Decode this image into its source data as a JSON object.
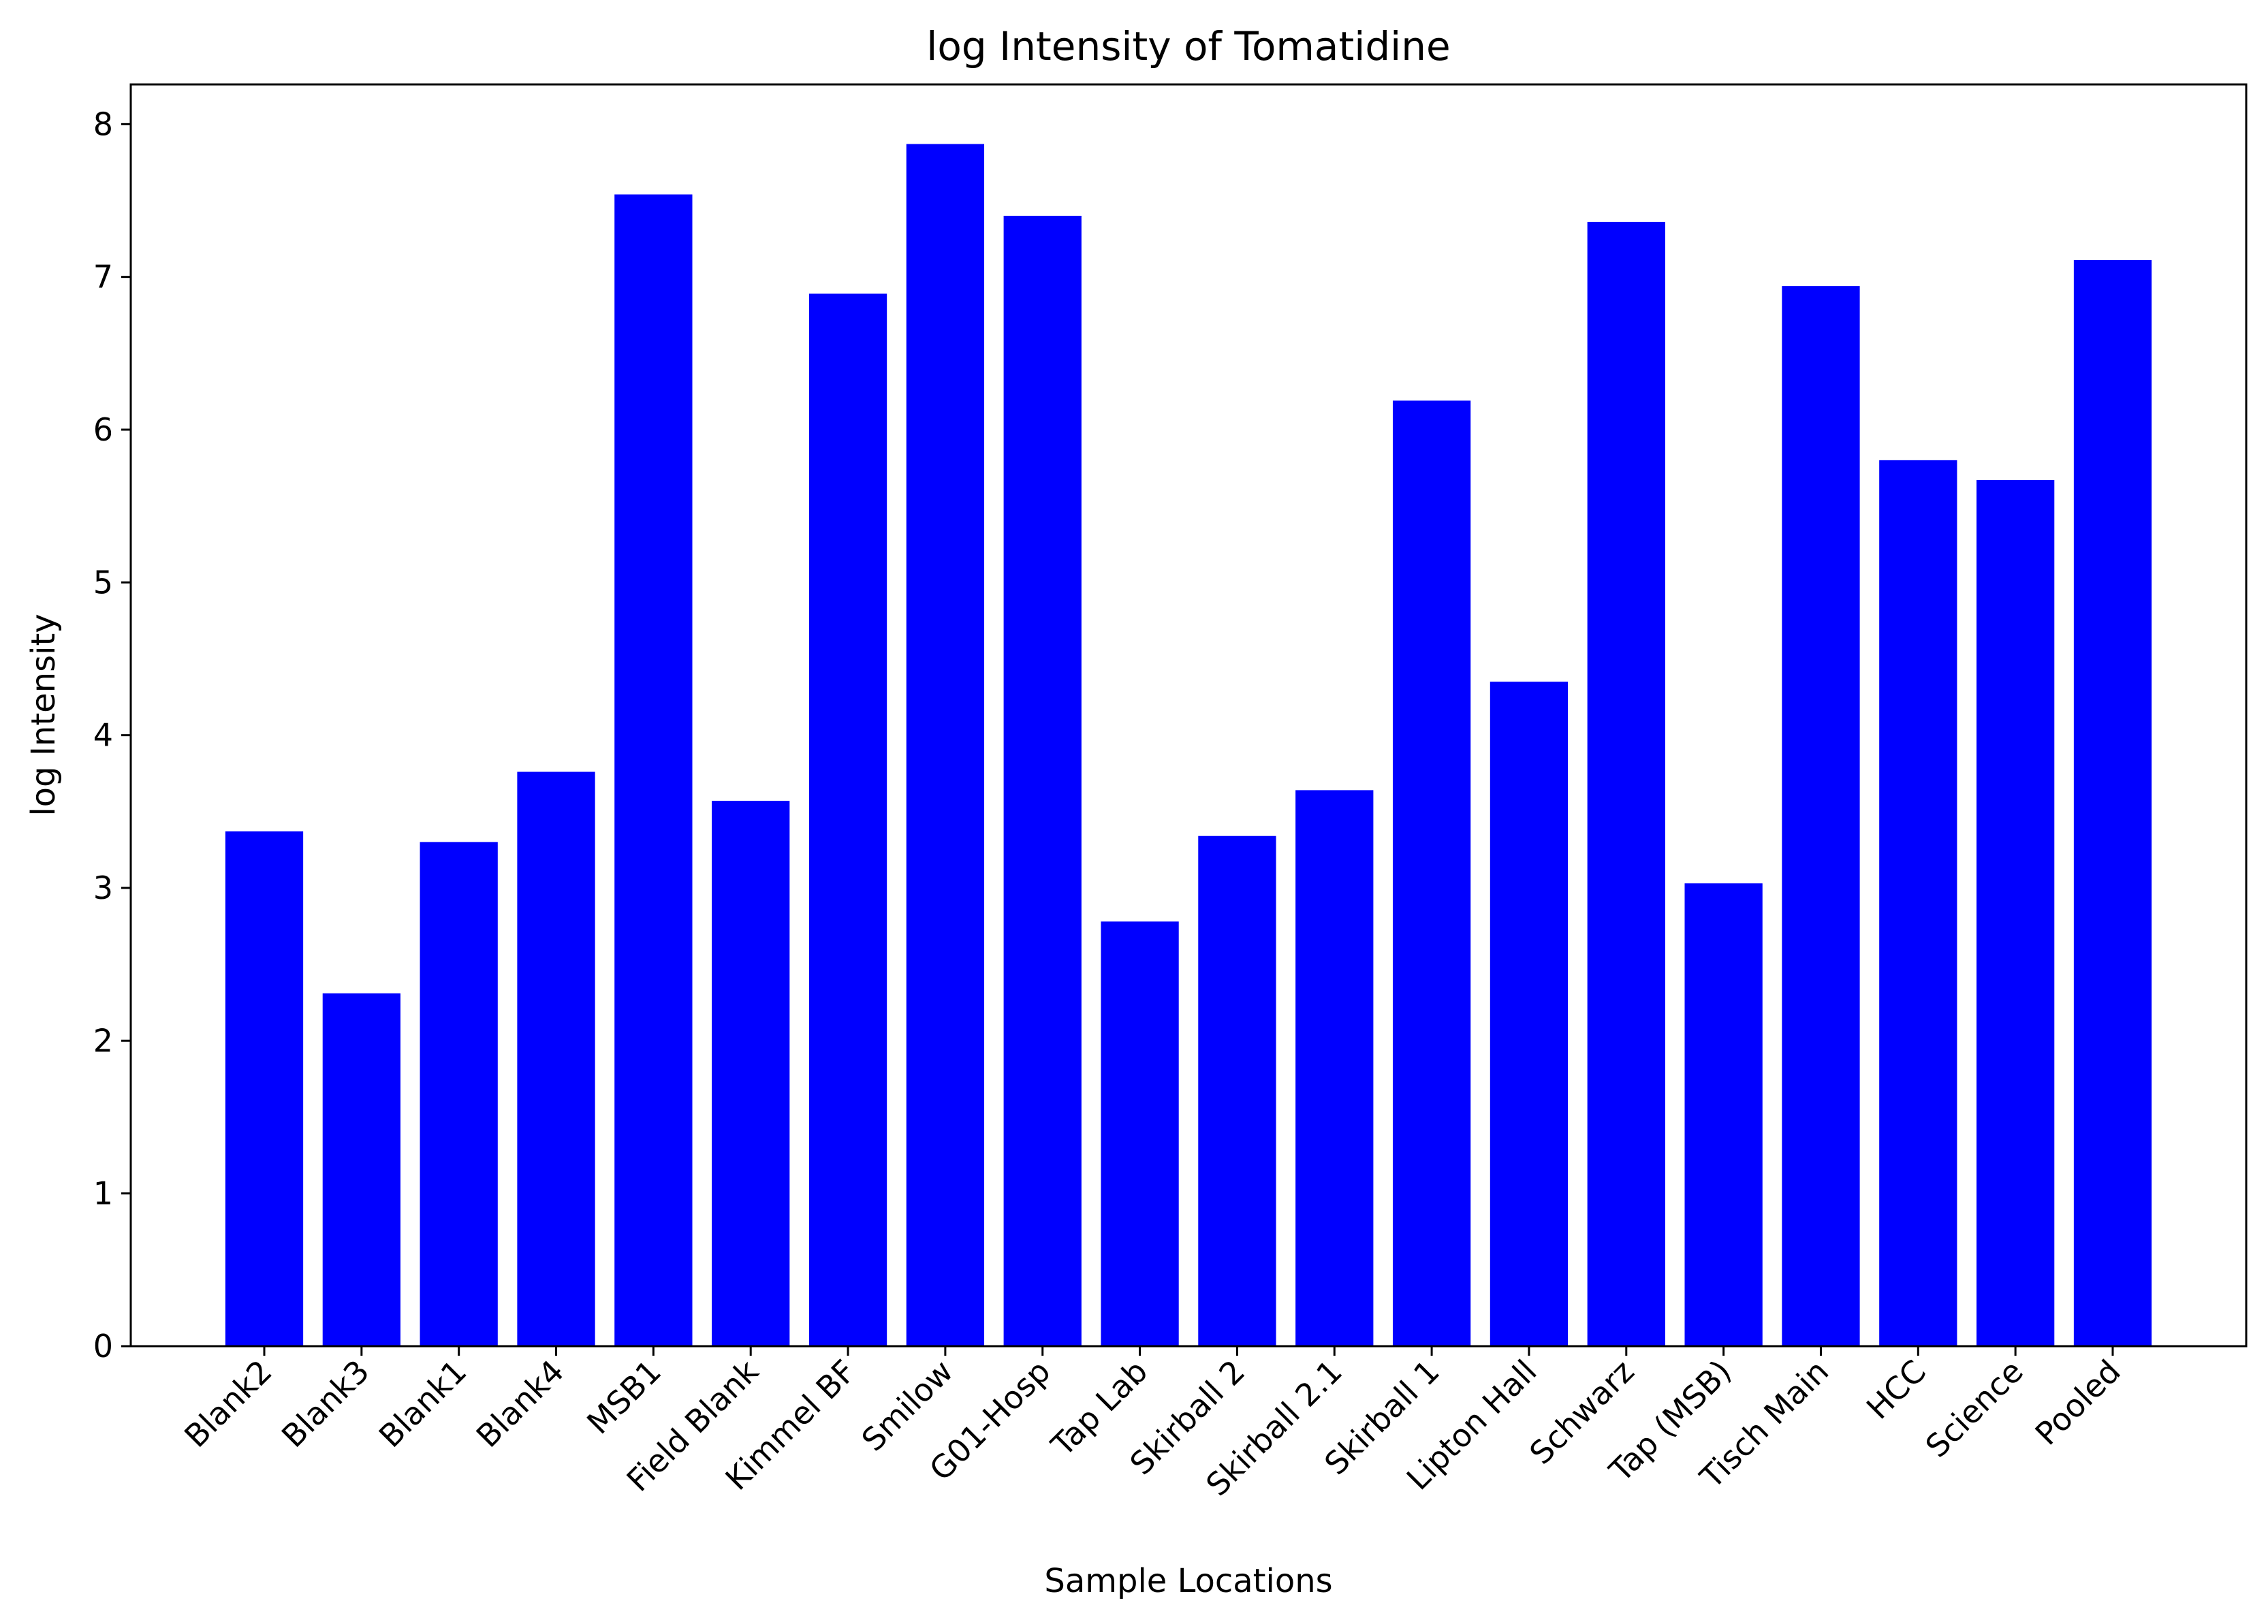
{
  "chart_data": {
    "type": "bar",
    "title": "log Intensity of Tomatidine",
    "xlabel": "Sample Locations",
    "ylabel": "log Intensity",
    "categories": [
      "Blank2",
      "Blank3",
      "Blank1",
      "Blank4",
      "MSB1",
      "Field Blank",
      "Kimmel BF",
      "Smilow",
      "G01-Hosp",
      "Tap Lab",
      "Skirball 2",
      "Skirball 2.1",
      "Skirball 1",
      "Lipton Hall",
      "Schwarz",
      "Tap (MSB)",
      "Tisch Main",
      "HCC",
      "Science",
      "Pooled"
    ],
    "values": [
      3.37,
      2.31,
      3.3,
      3.76,
      7.54,
      3.57,
      6.89,
      7.87,
      7.4,
      2.78,
      3.34,
      3.64,
      6.19,
      4.35,
      7.36,
      3.03,
      6.94,
      5.8,
      5.67,
      7.11
    ],
    "yticks": [
      "0",
      "1",
      "2",
      "3",
      "4",
      "5",
      "6",
      "7",
      "8"
    ],
    "ylim": [
      0,
      8.26
    ],
    "bar_color": "#0000ff",
    "grid": false
  }
}
